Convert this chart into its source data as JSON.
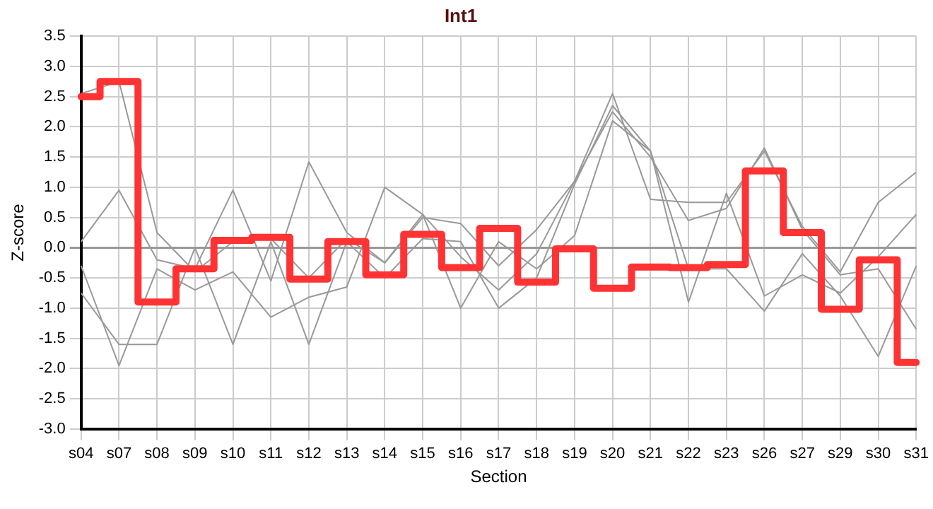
{
  "chart_data": {
    "type": "line",
    "title": "Int1",
    "xlabel": "Section",
    "ylabel": "Z-score",
    "categories": [
      "s04",
      "s07",
      "s08",
      "s09",
      "s10",
      "s11",
      "s12",
      "s13",
      "s14",
      "s15",
      "s16",
      "s17",
      "s18",
      "s19",
      "s20",
      "s21",
      "s22",
      "s23",
      "s26",
      "s27",
      "s29",
      "s30",
      "s31"
    ],
    "ylim": [
      -3.0,
      3.5
    ],
    "yticks": [
      {
        "value": -3,
        "label": "-3.0"
      },
      {
        "value": -2.5,
        "label": "-2.5"
      },
      {
        "value": -2,
        "label": "-2.0"
      },
      {
        "value": -1.5,
        "label": "-1.5"
      },
      {
        "value": -1,
        "label": "-1.0"
      },
      {
        "value": -0.5,
        "label": "-0.5"
      },
      {
        "value": 0,
        "label": "0.0"
      },
      {
        "value": 0.5,
        "label": "0.5"
      },
      {
        "value": 1,
        "label": "1.0"
      },
      {
        "value": 1.5,
        "label": "1.5"
      },
      {
        "value": 2,
        "label": "2.0"
      },
      {
        "value": 2.5,
        "label": "2.5"
      },
      {
        "value": 3,
        "label": "3.0"
      },
      {
        "value": 3.5,
        "label": "3.5"
      }
    ],
    "grid": true,
    "legend": false,
    "marker": "none",
    "series": [
      {
        "type": "line",
        "color": "#999999",
        "values": [
          2.55,
          2.75,
          0.25,
          -0.4,
          0.1,
          0.15,
          -0.5,
          0.15,
          -0.25,
          0.5,
          0.4,
          -0.3,
          0.3,
          1.1,
          2.25,
          1.5,
          0.45,
          0.65,
          1.65,
          0.3,
          -0.45,
          -0.35,
          -1.35
        ]
      },
      {
        "type": "line",
        "color": "#999999",
        "values": [
          0.1,
          0.95,
          -0.2,
          -0.35,
          0.95,
          -0.55,
          1.42,
          0.25,
          -0.25,
          0.55,
          -0.15,
          -0.7,
          -0.1,
          1.1,
          2.55,
          0.8,
          0.75,
          0.75,
          1.6,
          0.35,
          -0.4,
          0.75,
          1.25
        ]
      },
      {
        "type": "line",
        "color": "#999999",
        "values": [
          -0.3,
          -1.95,
          -0.35,
          -0.7,
          -0.4,
          -1.15,
          -0.82,
          -0.65,
          1.0,
          0.55,
          -1.0,
          0.1,
          -0.35,
          0.2,
          2.1,
          1.6,
          -0.9,
          0.9,
          -0.8,
          -0.45,
          -0.75,
          -0.15,
          0.55
        ]
      },
      {
        "type": "line",
        "color": "#999999",
        "values": [
          -0.75,
          -1.6,
          -1.6,
          0.0,
          -1.6,
          0.1,
          -1.6,
          0.1,
          -0.5,
          0.15,
          0.1,
          -1.0,
          -0.5,
          1.05,
          2.35,
          1.6,
          -0.35,
          -0.35,
          -1.05,
          -0.1,
          -0.8,
          -1.8,
          -0.3
        ]
      },
      {
        "type": "step",
        "color": "#ff3333",
        "values": [
          2.5,
          2.75,
          -0.9,
          -0.35,
          0.12,
          0.17,
          -0.52,
          0.1,
          -0.45,
          0.22,
          -0.33,
          0.32,
          -0.57,
          -0.02,
          -0.67,
          -0.32,
          -0.33,
          -0.28,
          1.27,
          0.25,
          -1.02,
          -0.2,
          -1.9
        ]
      }
    ]
  }
}
